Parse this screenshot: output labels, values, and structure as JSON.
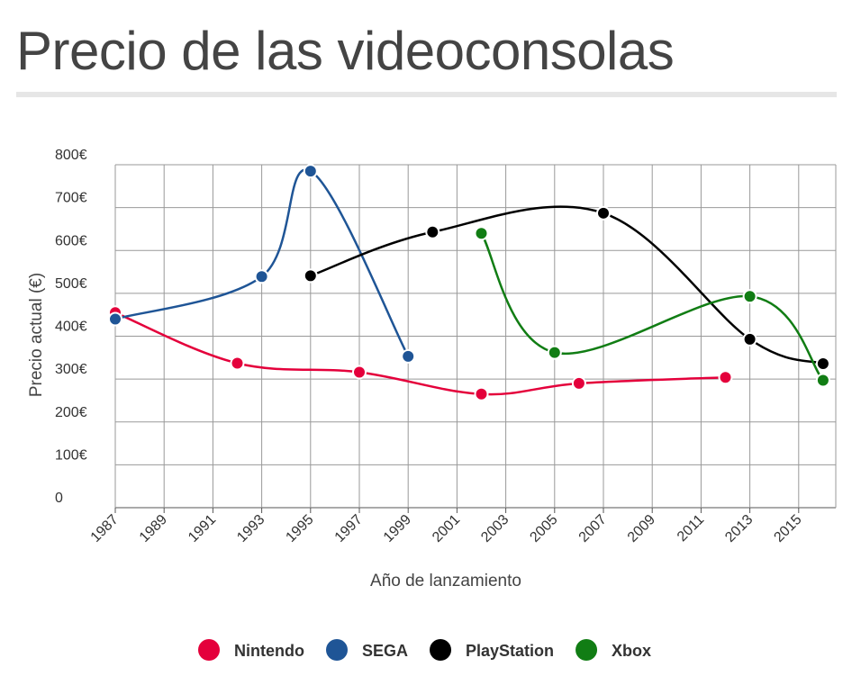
{
  "chart_data": {
    "type": "line",
    "title": "Precio de las videoconsolas",
    "xlabel": "Año de lanzamiento",
    "ylabel": "Precio actual (€)",
    "xlim": [
      1987,
      2016
    ],
    "ylim": [
      0,
      800
    ],
    "x_ticks": [
      "1987",
      "1989",
      "1991",
      "1993",
      "1995",
      "1997",
      "1999",
      "2001",
      "2003",
      "2005",
      "2007",
      "2009",
      "2011",
      "2013",
      "2015"
    ],
    "y_ticks": [
      "0",
      "100€",
      "200€",
      "300€",
      "400€",
      "500€",
      "600€",
      "700€",
      "800€"
    ],
    "grid": true,
    "legend_position": "bottom",
    "series": [
      {
        "name": "Nintendo",
        "color": "#e4003b",
        "x": [
          1987,
          1992,
          1997,
          2002,
          2006,
          2012
        ],
        "y": [
          455,
          337,
          316,
          265,
          290,
          304
        ]
      },
      {
        "name": "SEGA",
        "color": "#1f5596",
        "x": [
          1987,
          1993,
          1995,
          1999
        ],
        "y": [
          440,
          539,
          785,
          353
        ]
      },
      {
        "name": "PlayStation",
        "color": "#000000",
        "x": [
          1995,
          2000,
          2007,
          2013,
          2016
        ],
        "y": [
          541,
          643,
          687,
          393,
          336
        ]
      },
      {
        "name": "Xbox",
        "color": "#117d14",
        "x": [
          2002,
          2005,
          2013,
          2016
        ],
        "y": [
          640,
          362,
          493,
          297
        ]
      }
    ]
  }
}
